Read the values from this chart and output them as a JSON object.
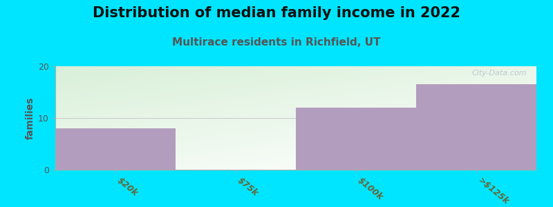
{
  "title": "Distribution of median family income in 2022",
  "subtitle": "Multirace residents in Richfield, UT",
  "categories": [
    "$20k",
    "$75k",
    "$100k",
    ">$125k"
  ],
  "values": [
    8,
    0,
    12,
    16.5
  ],
  "bar_color": "#b39dbe",
  "background_color": "#00e5ff",
  "plot_bg_left": "#d4ead4",
  "plot_bg_right": "#f0f8f0",
  "plot_bg_white": "#ffffff",
  "ylabel": "families",
  "ylim": [
    0,
    20
  ],
  "yticks": [
    0,
    10,
    20
  ],
  "title_fontsize": 15,
  "subtitle_fontsize": 11,
  "subtitle_color": "#555555",
  "ylabel_color": "#555555",
  "tick_label_color": "#666633",
  "watermark": "City-Data.com",
  "grid_color": "#cccccc",
  "axis_color": "#aaaaaa"
}
